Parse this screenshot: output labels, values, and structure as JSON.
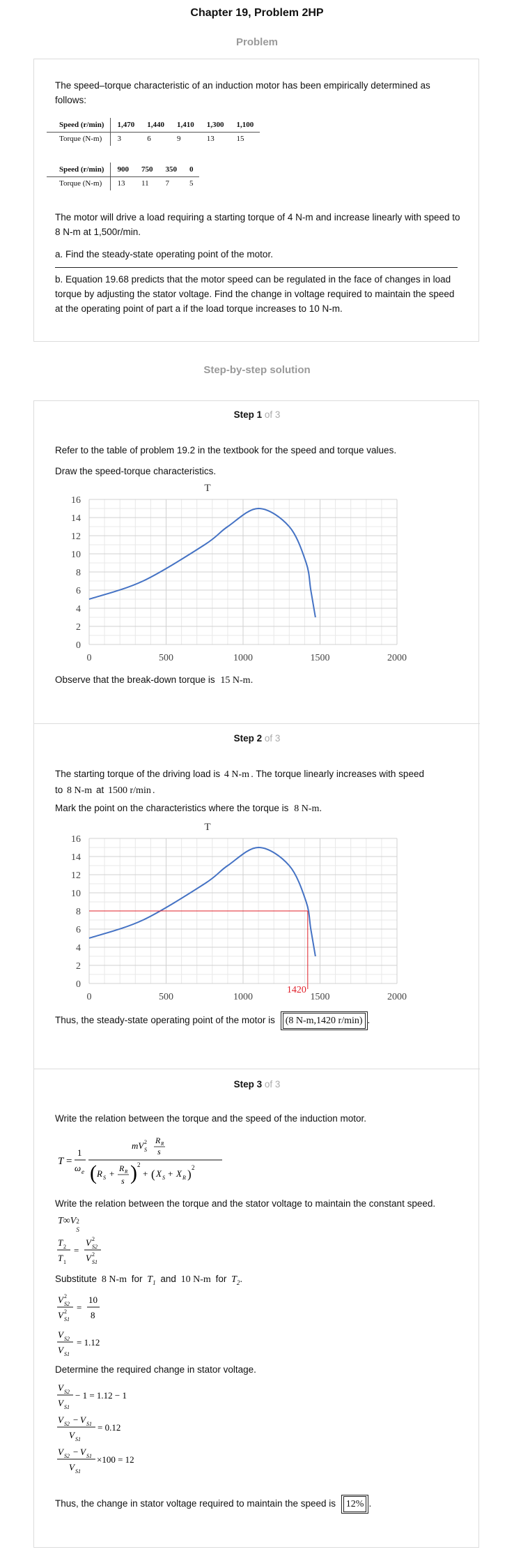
{
  "header": {
    "title": "Chapter 19, Problem 2HP"
  },
  "problem": {
    "section_title": "Problem",
    "intro": "The speed–torque characteristic of an induction motor has been empirically determined as follows:",
    "table1": {
      "speed_label": "Speed (r/min)",
      "torque_label": "Torque (N-m)",
      "speeds": [
        "1,470",
        "1,440",
        "1,410",
        "1,300",
        "1,100"
      ],
      "torques": [
        "3",
        "6",
        "9",
        "13",
        "15"
      ]
    },
    "table2": {
      "speed_label": "Speed (r/min)",
      "torque_label": "Torque (N-m)",
      "speeds": [
        "900",
        "750",
        "350",
        "0"
      ],
      "torques": [
        "13",
        "11",
        "7",
        "5"
      ]
    },
    "load_text": "The motor will drive a load requiring a starting torque of 4 N-m and increase linearly with speed to 8 N-m at 1,500r/min.",
    "part_a": "a. Find the steady-state operating point of the motor.",
    "part_b": "b. Equation 19.68 predicts that the motor speed can be regulated in the face of changes in load torque by adjusting the stator voltage. Find the change in voltage required to maintain the speed at the operating point of part a if the load torque increases to 10 N-m."
  },
  "solution": {
    "section_title": "Step-by-step solution"
  },
  "step1": {
    "label": "Step 1",
    "of": "of 3",
    "text1": "Refer to the table of problem 19.2 in the textbook for the speed and torque values.",
    "text2": "Draw the speed-torque characteristics.",
    "observe_text": "Observe that the break-down torque is",
    "observe_value": "15 N-m"
  },
  "step2": {
    "label": "Step 2",
    "of": "of 3",
    "text1_a": "The starting torque of the driving load is",
    "text1_v1": "4 N-m",
    "text1_b": ". The torque linearly increases with speed",
    "text2_a": "to",
    "text2_v1": "8 N-m",
    "text2_b": "at",
    "text2_v2": "1500 r/min",
    "text3_a": "Mark the point on the characteristics where the torque is",
    "text3_v": "8 N-m",
    "thus_text": "Thus, the steady-state operating point of the motor is",
    "thus_value": "(8 N-m,1420 r/min)"
  },
  "step3": {
    "label": "Step 3",
    "of": "of 3",
    "text1": "Write the relation between the torque and the speed of the induction motor.",
    "text2": "Write the relation between the torque and the stator voltage to maintain the constant speed.",
    "subst_a": "Substitute",
    "subst_v1": "8 N-m",
    "subst_b": "for",
    "subst_c": "and",
    "subst_v2": "10 N-m",
    "subst_d": "for",
    "eq_ratio_value": "10",
    "eq_ratio_den": "8",
    "eq_v_ratio": "= 1.12",
    "text3": "Determine the required change in stator voltage.",
    "eq_a": "− 1 = 1.12 − 1",
    "eq_b": "= 0.12",
    "eq_c": "×100 = 12",
    "thus_text": "Thus, the change in stator voltage required to maintain the speed is",
    "thus_value": "12%"
  },
  "chart_data": [
    {
      "type": "line",
      "title": "T",
      "xlabel": "",
      "ylabel": "",
      "xlim": [
        0,
        2000
      ],
      "ylim": [
        0,
        16
      ],
      "xticks": [
        0,
        500,
        1000,
        1500,
        2000
      ],
      "yticks": [
        0,
        2,
        4,
        6,
        8,
        10,
        12,
        14,
        16
      ],
      "grid": true,
      "color": "#4472c4",
      "series": [
        {
          "x": [
            0,
            350,
            750,
            900,
            1100,
            1300,
            1410,
            1440,
            1470
          ],
          "y": [
            5,
            7,
            11,
            13,
            15,
            13,
            9,
            6,
            3
          ]
        }
      ]
    },
    {
      "type": "line",
      "title": "T",
      "xlabel": "",
      "ylabel": "",
      "xlim": [
        0,
        2000
      ],
      "ylim": [
        0,
        16
      ],
      "xticks": [
        0,
        500,
        1000,
        1500,
        2000
      ],
      "yticks": [
        0,
        2,
        4,
        6,
        8,
        10,
        12,
        14,
        16
      ],
      "grid": true,
      "color": "#4472c4",
      "marker_color": "#e0202a",
      "marker_label": "1420",
      "marker": {
        "x": 1420,
        "y": 8
      },
      "series": [
        {
          "x": [
            0,
            350,
            750,
            900,
            1100,
            1300,
            1410,
            1440,
            1470
          ],
          "y": [
            5,
            7,
            11,
            13,
            15,
            13,
            9,
            6,
            3
          ]
        }
      ]
    }
  ]
}
